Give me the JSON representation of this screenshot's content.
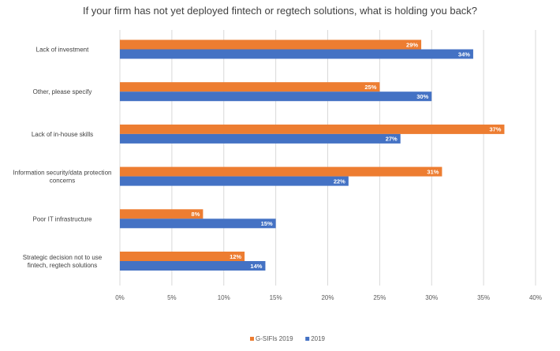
{
  "chart_data": {
    "type": "bar",
    "orientation": "horizontal",
    "title": "If your firm has not yet deployed fintech or regtech solutions, what is holding you back?",
    "categories": [
      "Lack of investment",
      "Other, please specify",
      "Lack of in-house skills",
      "Information security/data protection concerns",
      "Poor IT infrastructure",
      "Strategic decision not to use fintech, regtech solutions"
    ],
    "series": [
      {
        "name": "G-SIFIs 2019",
        "color": "#ed7d31",
        "values": [
          29,
          25,
          37,
          31,
          8,
          12
        ]
      },
      {
        "name": "2019",
        "color": "#4472c4",
        "values": [
          34,
          30,
          27,
          22,
          15,
          14
        ]
      }
    ],
    "xlim": [
      0,
      40
    ],
    "xticks": [
      "0%",
      "5%",
      "10%",
      "15%",
      "20%",
      "25%",
      "30%",
      "35%",
      "40%"
    ],
    "value_suffix": "%",
    "grid": true,
    "legend_position": "bottom"
  }
}
